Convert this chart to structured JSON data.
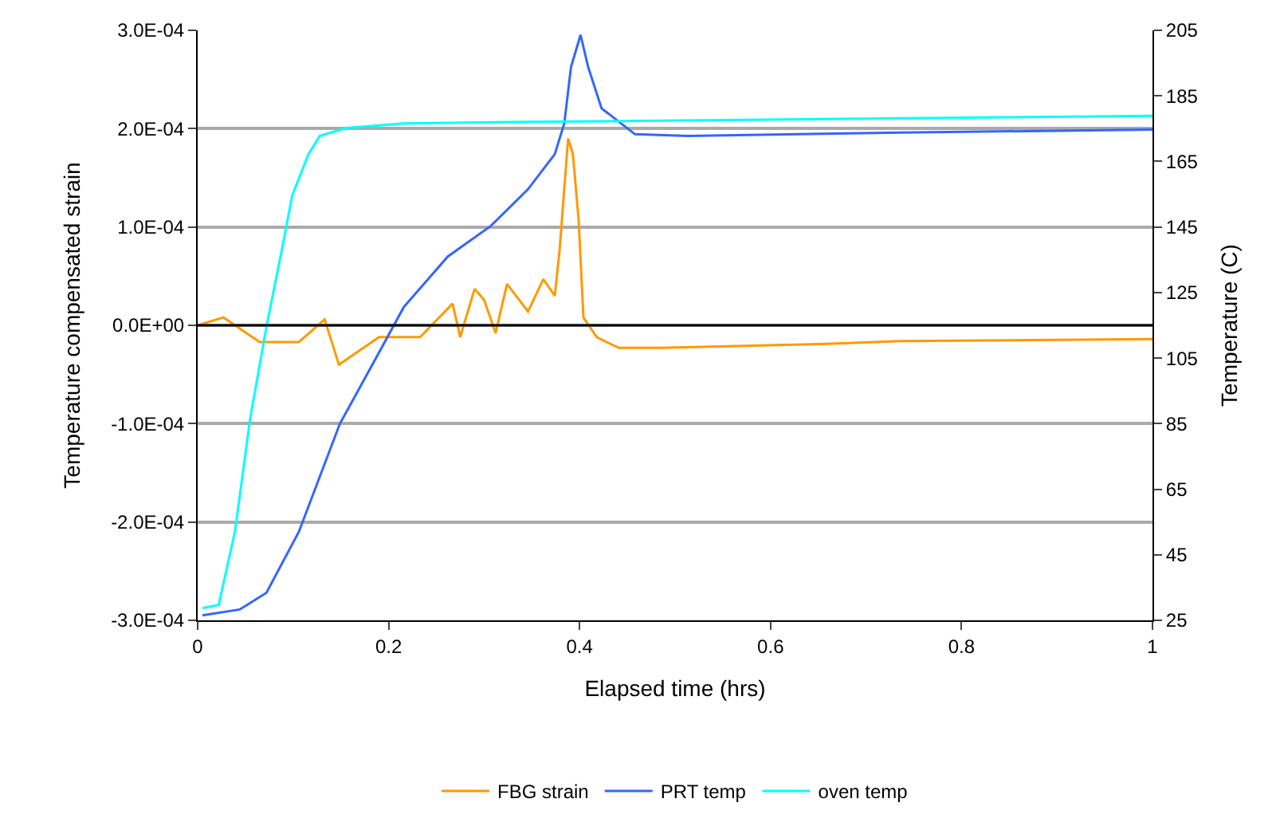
{
  "chart_data": {
    "type": "line",
    "xlabel": "Elapsed time (hrs)",
    "ylabel": "Temperature compensated strain",
    "y2label": "Temperature (C)",
    "series": [
      {
        "name": "FBG strain",
        "color": "#ff9900",
        "axis": "y",
        "x": [
          0,
          0.027,
          0.065,
          0.106,
          0.133,
          0.148,
          0.19,
          0.233,
          0.267,
          0.275,
          0.29,
          0.3,
          0.312,
          0.324,
          0.346,
          0.362,
          0.374,
          0.379,
          0.388,
          0.393,
          0.399,
          0.404,
          0.418,
          0.441,
          0.485,
          0.653,
          0.737,
          1.0
        ],
        "values": [
          0,
          8e-06,
          -1.7e-05,
          -1.7e-05,
          6e-06,
          -4e-05,
          -1.2e-05,
          -1.2e-05,
          2.2e-05,
          -1.2e-05,
          3.7e-05,
          2.6e-05,
          -8e-06,
          4.2e-05,
          1.4e-05,
          4.7e-05,
          3e-05,
          7.6e-05,
          0.00019,
          0.000174,
          0.000107,
          8e-06,
          -1.2e-05,
          -2.3e-05,
          -2.3e-05,
          -1.9e-05,
          -1.6e-05,
          -1.4e-05
        ]
      },
      {
        "name": "PRT temp",
        "color": "#3366ff",
        "axis": "y2",
        "x": [
          0.005,
          0.044,
          0.072,
          0.106,
          0.149,
          0.183,
          0.216,
          0.262,
          0.307,
          0.346,
          0.374,
          0.384,
          0.391,
          0.401,
          0.409,
          0.423,
          0.458,
          0.513,
          0.737,
          1.0
        ],
        "values": [
          26.5,
          28.3,
          33.4,
          52,
          85,
          103,
          120.6,
          136,
          145.3,
          156.5,
          167.2,
          176.6,
          193.8,
          203.6,
          193.8,
          181.2,
          173.3,
          172.8,
          173.8,
          174.7
        ]
      },
      {
        "name": "oven temp",
        "color": "#00ffff",
        "axis": "y2",
        "x": [
          0.005,
          0.022,
          0.039,
          0.055,
          0.072,
          0.089,
          0.099,
          0.116,
          0.128,
          0.156,
          0.216,
          0.329,
          0.68,
          1.0
        ],
        "values": [
          28.7,
          29.7,
          52,
          86.6,
          114.5,
          139.3,
          154.6,
          167.2,
          172.8,
          175.2,
          176.6,
          177,
          178,
          178.9
        ]
      }
    ],
    "xlim": [
      0,
      1
    ],
    "xticks": [
      0,
      0.2,
      0.4,
      0.6,
      0.8,
      1
    ],
    "ylim": [
      -0.0003,
      0.0003
    ],
    "yticks": [
      {
        "value": 0.0003,
        "label": "3.0E-04"
      },
      {
        "value": 0.0002,
        "label": "2.0E-04"
      },
      {
        "value": 0.0001,
        "label": "1.0E-04"
      },
      {
        "value": 0,
        "label": "0.0E+00"
      },
      {
        "value": -0.0001,
        "label": "-1.0E-04"
      },
      {
        "value": -0.0002,
        "label": "-2.0E-04"
      },
      {
        "value": -0.0003,
        "label": "-3.0E-04"
      }
    ],
    "y2lim": [
      25,
      205
    ],
    "y2ticks": [
      25,
      45,
      65,
      85,
      105,
      125,
      145,
      165,
      185,
      205
    ],
    "ref_lines": [
      {
        "axis": "y",
        "value": 0,
        "color": "#000000"
      }
    ],
    "grid": "y",
    "legend": "bottom",
    "marker": "none",
    "line_style": "solid"
  }
}
